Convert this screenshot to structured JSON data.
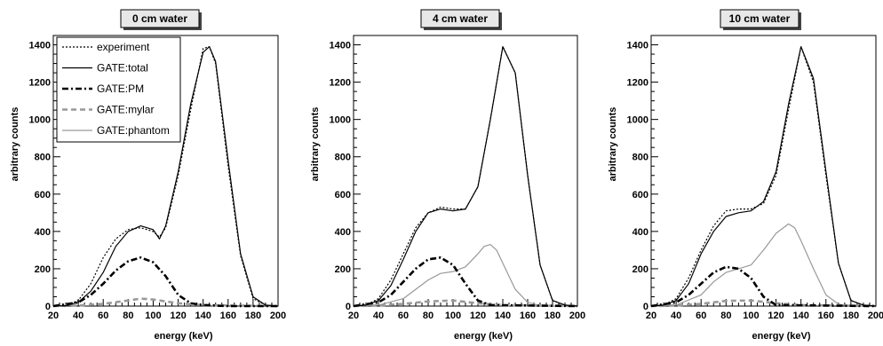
{
  "chart_data": [
    {
      "type": "line",
      "title": "0 cm water",
      "xlabel": "energy (keV)",
      "ylabel": "arbitrary counts",
      "xlim": [
        20,
        200
      ],
      "ylim": [
        0,
        1450
      ],
      "xticks": [
        "20",
        "40",
        "60",
        "80",
        "100",
        "120",
        "140",
        "160",
        "180",
        "200"
      ],
      "yticks": [
        "0",
        "200",
        "400",
        "600",
        "800",
        "1000",
        "1200",
        "1400"
      ],
      "legend": {
        "position": "top-left",
        "entries": [
          "experiment",
          "GATE:total",
          "GATE:PM",
          "GATE:mylar",
          "GATE:phantom"
        ]
      },
      "series": [
        {
          "name": "experiment",
          "style": "dotted",
          "color": "#000000",
          "x": [
            20,
            30,
            40,
            50,
            60,
            70,
            80,
            90,
            100,
            105,
            110,
            120,
            130,
            140,
            145,
            150,
            160,
            170,
            180,
            190,
            200
          ],
          "y": [
            0,
            2,
            30,
            120,
            260,
            360,
            410,
            420,
            400,
            370,
            420,
            700,
            1050,
            1380,
            1390,
            1300,
            750,
            270,
            40,
            5,
            0
          ]
        },
        {
          "name": "GATE:total",
          "style": "solid",
          "color": "#000000",
          "x": [
            20,
            30,
            40,
            50,
            60,
            70,
            80,
            90,
            100,
            105,
            110,
            120,
            130,
            140,
            145,
            150,
            160,
            170,
            180,
            190,
            200
          ],
          "y": [
            0,
            2,
            20,
            80,
            180,
            320,
            400,
            430,
            410,
            360,
            430,
            720,
            1080,
            1360,
            1390,
            1310,
            780,
            280,
            50,
            5,
            0
          ]
        },
        {
          "name": "GATE:PM",
          "style": "dashdot",
          "color": "#000000",
          "x": [
            20,
            40,
            50,
            60,
            70,
            80,
            90,
            100,
            110,
            120,
            130,
            140,
            160,
            200
          ],
          "y": [
            0,
            20,
            60,
            120,
            190,
            240,
            260,
            235,
            160,
            60,
            15,
            5,
            0,
            0
          ]
        },
        {
          "name": "GATE:mylar",
          "style": "dashed",
          "color": "#999999",
          "x": [
            20,
            40,
            60,
            80,
            90,
            100,
            120,
            140,
            200
          ],
          "y": [
            0,
            3,
            12,
            30,
            40,
            35,
            15,
            5,
            0
          ]
        }
      ]
    },
    {
      "type": "line",
      "title": "4 cm water",
      "xlabel": "energy (keV)",
      "ylabel": "arbitrary counts",
      "xlim": [
        20,
        200
      ],
      "ylim": [
        0,
        1450
      ],
      "xticks": [
        "20",
        "40",
        "60",
        "80",
        "100",
        "120",
        "140",
        "160",
        "180",
        "200"
      ],
      "yticks": [
        "0",
        "200",
        "400",
        "600",
        "800",
        "1000",
        "1200",
        "1400"
      ],
      "series": [
        {
          "name": "experiment",
          "style": "dotted",
          "color": "#000000",
          "x": [
            20,
            30,
            40,
            50,
            60,
            70,
            80,
            90,
            100,
            110,
            120,
            130,
            140,
            150,
            160,
            170,
            180,
            190,
            200
          ],
          "y": [
            0,
            5,
            40,
            140,
            280,
            420,
            500,
            530,
            520,
            520,
            640,
            1000,
            1390,
            1250,
            700,
            220,
            30,
            5,
            0
          ]
        },
        {
          "name": "GATE:total",
          "style": "solid",
          "color": "#000000",
          "x": [
            20,
            30,
            40,
            50,
            60,
            70,
            80,
            90,
            100,
            110,
            120,
            130,
            140,
            150,
            160,
            170,
            180,
            190,
            200
          ],
          "y": [
            0,
            5,
            30,
            110,
            250,
            400,
            500,
            520,
            510,
            520,
            640,
            1000,
            1390,
            1250,
            700,
            220,
            30,
            5,
            0
          ]
        },
        {
          "name": "GATE:PM",
          "style": "dashdot",
          "color": "#000000",
          "x": [
            20,
            40,
            50,
            60,
            70,
            80,
            90,
            100,
            110,
            120,
            130,
            200
          ],
          "y": [
            0,
            20,
            60,
            130,
            200,
            250,
            260,
            220,
            120,
            30,
            5,
            0
          ]
        },
        {
          "name": "GATE:mylar",
          "style": "dashed",
          "color": "#999999",
          "x": [
            20,
            40,
            60,
            80,
            100,
            120,
            140,
            200
          ],
          "y": [
            0,
            3,
            12,
            25,
            30,
            15,
            5,
            0
          ]
        },
        {
          "name": "GATE:phantom",
          "style": "solid",
          "color": "#999999",
          "x": [
            20,
            40,
            60,
            70,
            80,
            90,
            100,
            110,
            120,
            125,
            130,
            135,
            140,
            150,
            160,
            170,
            180,
            200
          ],
          "y": [
            0,
            5,
            40,
            90,
            140,
            175,
            185,
            210,
            280,
            320,
            330,
            300,
            230,
            90,
            20,
            3,
            0,
            0
          ]
        }
      ]
    },
    {
      "type": "line",
      "title": "10 cm water",
      "xlabel": "energy (keV)",
      "ylabel": "arbitrary counts",
      "xlim": [
        20,
        200
      ],
      "ylim": [
        0,
        1450
      ],
      "xticks": [
        "20",
        "40",
        "60",
        "80",
        "100",
        "120",
        "140",
        "160",
        "180",
        "200"
      ],
      "yticks": [
        "0",
        "200",
        "400",
        "600",
        "800",
        "1000",
        "1200",
        "1400"
      ],
      "series": [
        {
          "name": "experiment",
          "style": "dotted",
          "color": "#000000",
          "x": [
            20,
            30,
            40,
            50,
            60,
            70,
            80,
            90,
            100,
            110,
            120,
            130,
            140,
            150,
            160,
            170,
            180,
            190,
            200
          ],
          "y": [
            0,
            5,
            40,
            150,
            300,
            430,
            510,
            520,
            520,
            550,
            700,
            1050,
            1390,
            1200,
            700,
            230,
            30,
            5,
            0
          ]
        },
        {
          "name": "GATE:total",
          "style": "solid",
          "color": "#000000",
          "x": [
            20,
            30,
            40,
            50,
            60,
            70,
            80,
            90,
            100,
            110,
            120,
            130,
            140,
            150,
            160,
            170,
            180,
            190,
            200
          ],
          "y": [
            0,
            5,
            30,
            120,
            280,
            400,
            480,
            500,
            510,
            560,
            720,
            1080,
            1390,
            1220,
            720,
            230,
            30,
            5,
            0
          ]
        },
        {
          "name": "GATE:PM",
          "style": "dashdot",
          "color": "#000000",
          "x": [
            20,
            40,
            50,
            60,
            70,
            80,
            90,
            100,
            110,
            120,
            200
          ],
          "y": [
            0,
            20,
            60,
            120,
            180,
            210,
            200,
            150,
            50,
            5,
            0
          ]
        },
        {
          "name": "GATE:mylar",
          "style": "dashed",
          "color": "#999999",
          "x": [
            20,
            40,
            60,
            80,
            100,
            120,
            140,
            200
          ],
          "y": [
            0,
            3,
            12,
            28,
            30,
            15,
            5,
            0
          ]
        },
        {
          "name": "GATE:phantom",
          "style": "solid",
          "color": "#999999",
          "x": [
            20,
            40,
            60,
            70,
            80,
            90,
            100,
            110,
            120,
            130,
            135,
            140,
            150,
            160,
            170,
            180,
            200
          ],
          "y": [
            0,
            5,
            60,
            130,
            180,
            200,
            220,
            300,
            390,
            440,
            420,
            350,
            200,
            60,
            10,
            0,
            0
          ]
        }
      ]
    }
  ]
}
